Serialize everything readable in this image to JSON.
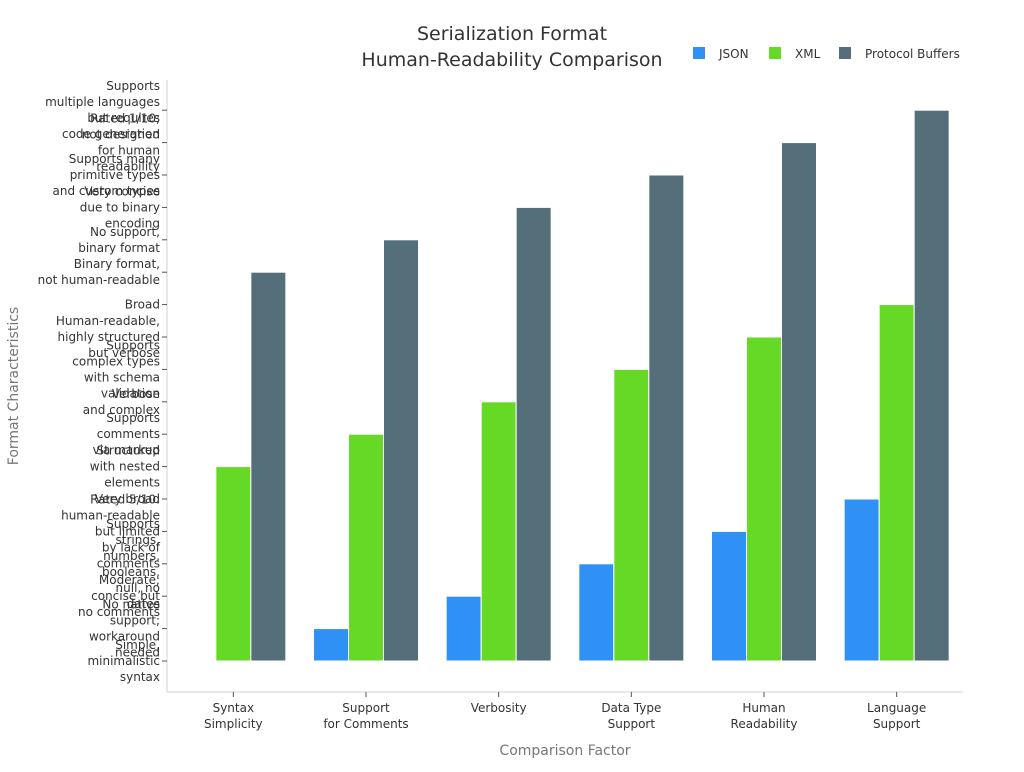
{
  "chart_data": {
    "type": "bar",
    "title": [
      "Serialization Format",
      "Human-Readability Comparison"
    ],
    "xlabel": "Comparison Factor",
    "ylabel": "Format Characteristics",
    "legend_position": "top-right",
    "categories": [
      [
        "Syntax",
        "Simplicity"
      ],
      [
        "Support",
        "for Comments"
      ],
      [
        "Verbosity"
      ],
      [
        "Data Type",
        "Support"
      ],
      [
        "Human",
        "Readability"
      ],
      [
        "Language",
        "Support"
      ]
    ],
    "series": [
      {
        "name": "JSON",
        "color": "#2f90f5",
        "values": [
          0,
          1,
          2,
          3,
          4,
          5
        ]
      },
      {
        "name": "XML",
        "color": "#66d826",
        "values": [
          6,
          7,
          8,
          9,
          10,
          11
        ]
      },
      {
        "name": "Protocol Buffers",
        "color": "#546e7a",
        "values": [
          12,
          13,
          14,
          15,
          16,
          17
        ]
      }
    ],
    "ylim": [
      -1,
      18
    ],
    "yticks": [
      [
        "Simple,",
        "minimalistic",
        "syntax"
      ],
      [
        "No native",
        "support;",
        "workaround",
        "needed"
      ],
      [
        "Moderate;",
        "concise but",
        "no comments"
      ],
      [
        "Supports",
        "strings,",
        "numbers,",
        "booleans,",
        "null, no",
        "dates"
      ],
      [
        "Rated 5/10:",
        "human-readable",
        "but limited",
        "by lack of",
        "comments"
      ],
      [
        "Very broad"
      ],
      [
        "Structured",
        "with nested",
        "elements"
      ],
      [
        "Supports",
        "comments",
        "via markup"
      ],
      [
        "Verbose",
        "and complex"
      ],
      [
        "Supports",
        "complex types",
        "with schema",
        "validation"
      ],
      [
        "Human-readable,",
        "highly structured",
        "but verbose"
      ],
      [
        "Broad"
      ],
      [
        "Binary format,",
        "not human-readable"
      ],
      [
        "No support,",
        "binary format"
      ],
      [
        "Very concise",
        "due to binary",
        "encoding"
      ],
      [
        "Supports many",
        "primitive types",
        "and custom types"
      ],
      [
        "Rated 1/10;",
        "not designed",
        "for human",
        "readability"
      ],
      [
        "Supports",
        "multiple languages",
        "but requires",
        "code generation"
      ]
    ]
  }
}
